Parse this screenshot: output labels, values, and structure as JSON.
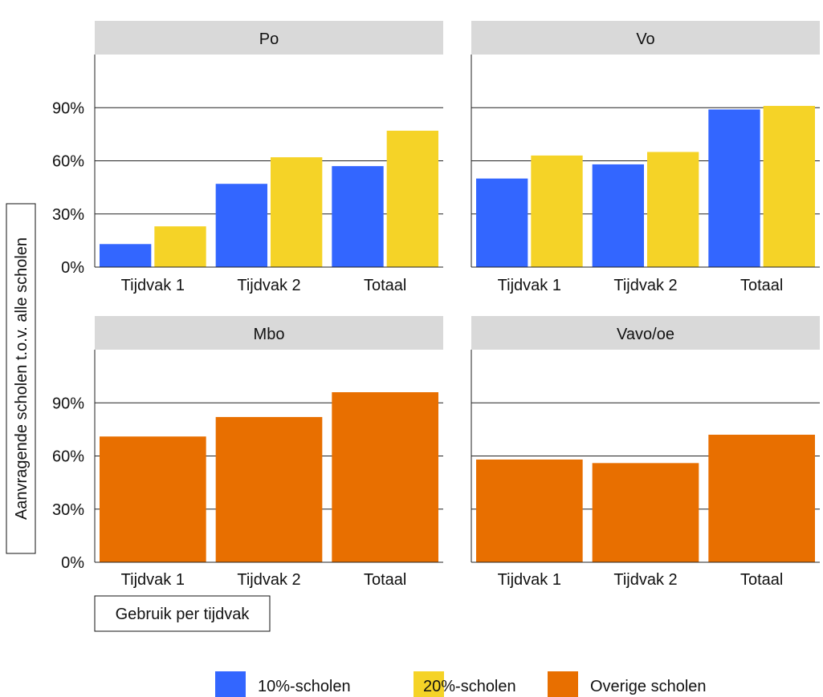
{
  "chart_data": {
    "type": "bar",
    "ylabel": "Aanvragende scholen t.o.v. alle scholen",
    "xlabel": "Gebruik per tijdvak",
    "ylim": [
      0,
      1.2
    ],
    "yticks": [
      {
        "value": 0,
        "label": "0%"
      },
      {
        "value": 0.3,
        "label": "30%"
      },
      {
        "value": 0.6,
        "label": "60%"
      },
      {
        "value": 0.9,
        "label": "90%"
      }
    ],
    "grid": true,
    "legend_position": "bottom",
    "categories": [
      "Tijdvak 1",
      "Tijdvak 2",
      "Totaal"
    ],
    "legend": [
      {
        "name": "10%-scholen",
        "color": "#3366ff"
      },
      {
        "name": "20%-scholen",
        "color": "#f5d327"
      },
      {
        "name": "Overige scholen",
        "color": "#e86f00"
      }
    ],
    "panels": [
      {
        "title": "Po",
        "series": [
          {
            "name": "10%-scholen",
            "values": [
              0.13,
              0.47,
              0.57
            ]
          },
          {
            "name": "20%-scholen",
            "values": [
              0.23,
              0.62,
              0.77
            ]
          }
        ]
      },
      {
        "title": "Vo",
        "series": [
          {
            "name": "10%-scholen",
            "values": [
              0.5,
              0.58,
              0.89
            ]
          },
          {
            "name": "20%-scholen",
            "values": [
              0.63,
              0.65,
              0.91
            ]
          }
        ]
      },
      {
        "title": "Mbo",
        "series": [
          {
            "name": "Overige scholen",
            "values": [
              0.71,
              0.82,
              0.96
            ]
          }
        ]
      },
      {
        "title": "Vavo/oe",
        "series": [
          {
            "name": "Overige scholen",
            "values": [
              0.58,
              0.56,
              0.72
            ]
          }
        ]
      }
    ]
  }
}
